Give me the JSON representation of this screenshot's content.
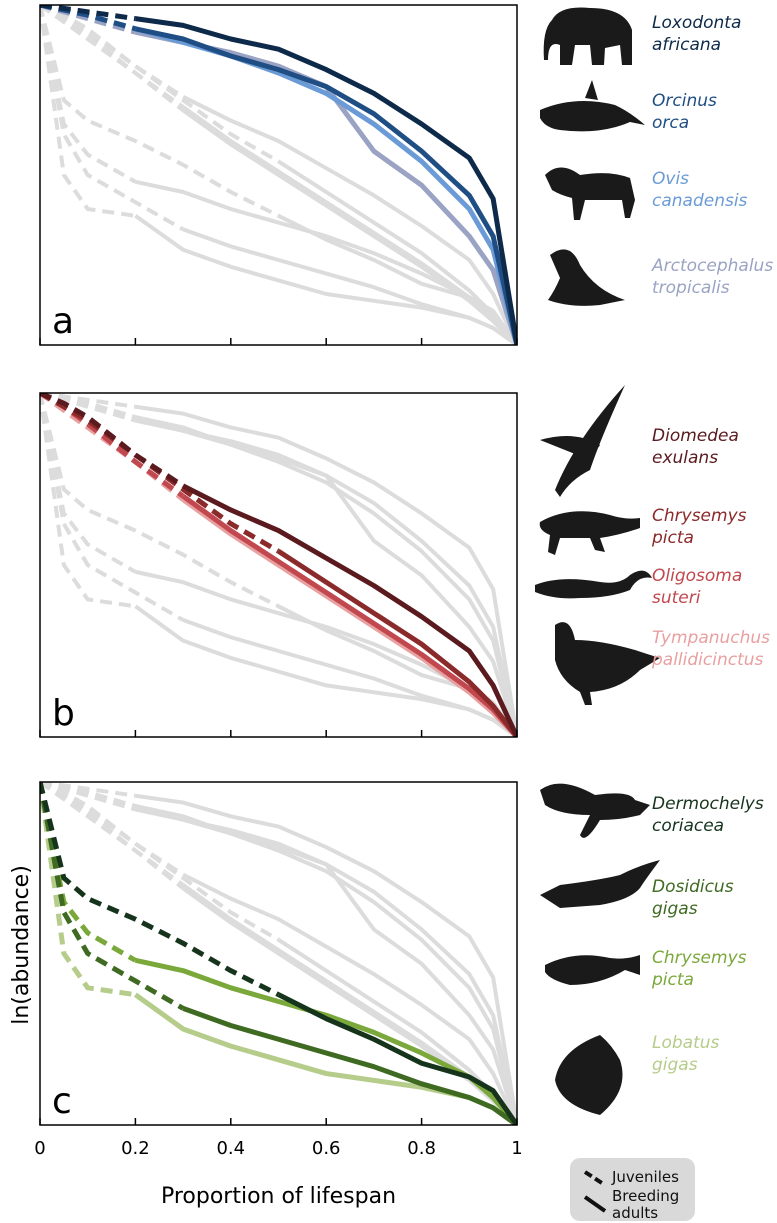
{
  "chart_data": [
    {
      "type": "line",
      "panel_label": "a",
      "xlim": [
        0,
        1
      ],
      "ylim": [
        0,
        1
      ],
      "xticks": [
        0,
        0.2,
        0.4,
        0.6,
        0.8,
        1
      ],
      "background_color": "#dcdcdc",
      "x": [
        0,
        0.05,
        0.1,
        0.2,
        0.3,
        0.4,
        0.5,
        0.6,
        0.7,
        0.8,
        0.9,
        0.95,
        1
      ],
      "series": [
        {
          "name": "Loxodonta africana",
          "color": "#0d2a4a",
          "juveniles": [
            1,
            0.99,
            0.98,
            0.96,
            null,
            null,
            null,
            null,
            null,
            null,
            null,
            null,
            null
          ],
          "adults": [
            null,
            null,
            null,
            0.96,
            0.94,
            0.9,
            0.87,
            0.81,
            0.74,
            0.65,
            0.55,
            0.43,
            0
          ]
        },
        {
          "name": "Orcinus orca",
          "color": "#1f4e85",
          "juveniles": [
            1,
            0.985,
            0.97,
            0.93,
            null,
            null,
            null,
            null,
            null,
            null,
            null,
            null,
            null
          ],
          "adults": [
            null,
            null,
            null,
            0.93,
            0.9,
            0.85,
            0.81,
            0.76,
            0.68,
            0.57,
            0.44,
            0.32,
            0
          ]
        },
        {
          "name": "Ovis canadensis",
          "color": "#6b9bd6",
          "juveniles": [
            1,
            0.985,
            0.97,
            0.93,
            null,
            null,
            null,
            null,
            null,
            null,
            null,
            null,
            null
          ],
          "adults": [
            null,
            null,
            null,
            0.93,
            0.89,
            0.85,
            0.8,
            0.74,
            0.65,
            0.54,
            0.4,
            0.28,
            0
          ]
        },
        {
          "name": "Arctocephalus tropicalis",
          "color": "#9aa3c4",
          "juveniles": [
            1,
            0.98,
            0.96,
            0.92,
            null,
            null,
            null,
            null,
            null,
            null,
            null,
            null,
            null
          ],
          "adults": [
            null,
            null,
            null,
            0.92,
            0.89,
            0.86,
            0.82,
            0.76,
            0.57,
            0.47,
            0.32,
            0.22,
            0
          ]
        }
      ]
    },
    {
      "type": "line",
      "panel_label": "b",
      "xlim": [
        0,
        1
      ],
      "ylim": [
        0,
        1
      ],
      "xticks": [
        0,
        0.2,
        0.4,
        0.6,
        0.8,
        1
      ],
      "background_color": "#dcdcdc",
      "x": [
        0,
        0.05,
        0.1,
        0.2,
        0.3,
        0.4,
        0.5,
        0.6,
        0.7,
        0.8,
        0.9,
        0.95,
        1
      ],
      "series": [
        {
          "name": "Diomedea exulans",
          "color": "#5a1a1e",
          "juveniles": [
            1,
            0.97,
            0.93,
            0.82,
            0.73,
            null,
            null,
            null,
            null,
            null,
            null,
            null,
            null
          ],
          "adults": [
            null,
            null,
            null,
            null,
            0.73,
            0.66,
            0.6,
            0.52,
            0.44,
            0.35,
            0.25,
            0.15,
            0
          ]
        },
        {
          "name": "Chrysemys picta",
          "color": "#8b2a2a",
          "juveniles": [
            1,
            0.96,
            0.92,
            0.82,
            0.72,
            0.62,
            0.54,
            null,
            null,
            null,
            null,
            null,
            null
          ],
          "adults": [
            null,
            null,
            null,
            null,
            null,
            null,
            0.54,
            0.45,
            0.36,
            0.27,
            0.16,
            0.09,
            0
          ]
        },
        {
          "name": "Oligosoma suteri",
          "color": "#c0484e",
          "juveniles": [
            1,
            0.96,
            0.91,
            0.8,
            0.7,
            null,
            null,
            null,
            null,
            null,
            null,
            null,
            null
          ],
          "adults": [
            null,
            null,
            null,
            null,
            0.7,
            0.6,
            0.51,
            0.42,
            0.33,
            0.24,
            0.14,
            0.08,
            0
          ]
        },
        {
          "name": "Tympanuchus pallidicinctus",
          "color": "#e8a0a0",
          "juveniles": [
            1,
            0.95,
            0.9,
            0.8,
            0.69,
            null,
            null,
            null,
            null,
            null,
            null,
            null,
            null
          ],
          "adults": [
            null,
            null,
            null,
            null,
            0.69,
            0.59,
            0.5,
            0.41,
            0.32,
            0.23,
            0.13,
            0.07,
            0
          ]
        }
      ]
    },
    {
      "type": "line",
      "panel_label": "c",
      "xlim": [
        0,
        1
      ],
      "ylim": [
        0,
        1
      ],
      "xticks": [
        0,
        0.2,
        0.4,
        0.6,
        0.8,
        1
      ],
      "xlabel": "Proportion of lifespan",
      "ylabel": "ln(abundance)",
      "background_color": "#dcdcdc",
      "legend": {
        "juveniles": "Juveniles",
        "adults": "Breeding adults"
      },
      "x": [
        0,
        0.05,
        0.1,
        0.2,
        0.3,
        0.4,
        0.5,
        0.6,
        0.7,
        0.8,
        0.9,
        0.95,
        1
      ],
      "series": [
        {
          "name": "Dermochelys coriacea",
          "color": "#16341c",
          "juveniles": [
            1,
            0.72,
            0.66,
            0.6,
            0.53,
            0.45,
            0.38,
            null,
            null,
            null,
            null,
            null,
            null
          ],
          "adults": [
            null,
            null,
            null,
            null,
            null,
            null,
            0.38,
            0.31,
            0.25,
            0.18,
            0.14,
            0.1,
            0
          ]
        },
        {
          "name": "Dosidicus gigas",
          "color": "#3f6a22",
          "juveniles": [
            1,
            0.62,
            0.5,
            0.42,
            0.34,
            null,
            null,
            null,
            null,
            null,
            null,
            null,
            null
          ],
          "adults": [
            null,
            null,
            null,
            null,
            0.34,
            0.29,
            0.25,
            0.21,
            0.17,
            0.12,
            0.08,
            0.05,
            0
          ]
        },
        {
          "name": "Chrysemys picta",
          "color": "#7aa83b",
          "juveniles": [
            1,
            0.65,
            0.56,
            0.48,
            null,
            null,
            null,
            null,
            null,
            null,
            null,
            null,
            null
          ],
          "adults": [
            null,
            null,
            null,
            0.48,
            0.45,
            0.4,
            0.36,
            0.32,
            0.27,
            0.21,
            0.14,
            0.08,
            0
          ]
        },
        {
          "name": "Lobatus gigas",
          "color": "#b5cc8a",
          "juveniles": [
            1,
            0.5,
            0.4,
            0.38,
            null,
            null,
            null,
            null,
            null,
            null,
            null,
            null,
            null
          ],
          "adults": [
            null,
            null,
            null,
            0.38,
            0.28,
            0.23,
            0.19,
            0.15,
            0.13,
            0.11,
            0.08,
            0.05,
            0
          ]
        }
      ]
    }
  ]
}
